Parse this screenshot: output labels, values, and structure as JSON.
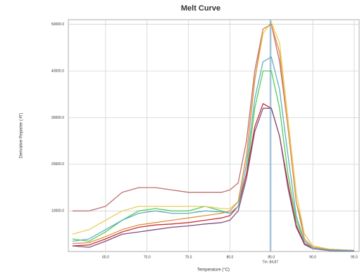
{
  "chart_data": {
    "type": "line",
    "title": "Melt Curve",
    "xlabel": "Temperature (°C)",
    "ylabel": "Derivative Reporter (-R')",
    "annotation": "Tm: 84.87",
    "tm": 84.87,
    "xlim": [
      60.5,
      95.6
    ],
    "ylim": [
      1300,
      51000
    ],
    "xticks": [
      {
        "value": 65,
        "label": "65.0"
      },
      {
        "value": 70,
        "label": "70.0"
      },
      {
        "value": 75,
        "label": "75.0"
      },
      {
        "value": 80,
        "label": "80.0"
      },
      {
        "value": 85,
        "label": "85.0"
      },
      {
        "value": 90,
        "label": "90.0"
      },
      {
        "value": 95,
        "label": "95.0"
      }
    ],
    "yticks": [
      {
        "value": 10000,
        "label": "10000.0"
      },
      {
        "value": 20000,
        "label": "20000.0"
      },
      {
        "value": 30000,
        "label": "30000.0"
      },
      {
        "value": 40000,
        "label": "40000.0"
      },
      {
        "value": 50000,
        "label": "50000.0"
      }
    ],
    "grid": true,
    "x": [
      61,
      63,
      65,
      67,
      69,
      71,
      73,
      75,
      77,
      79,
      80,
      81,
      82,
      83,
      84,
      85,
      86,
      87,
      88,
      89,
      90,
      92,
      95
    ],
    "series": [
      {
        "color": "#c07070",
        "values": [
          10000,
          10000,
          11000,
          14000,
          15000,
          15000,
          14500,
          14000,
          14000,
          14000,
          14500,
          16000,
          25000,
          40000,
          49000,
          50000,
          42000,
          28000,
          12000,
          5000,
          2500,
          1800,
          1500
        ]
      },
      {
        "color": "#55cc55",
        "values": [
          4000,
          3500,
          5500,
          8000,
          10000,
          10500,
          10000,
          10000,
          11000,
          10000,
          9500,
          11000,
          18000,
          32000,
          40000,
          40000,
          32000,
          18000,
          8000,
          3500,
          2000,
          1600,
          1500
        ]
      },
      {
        "color": "#e8d060",
        "values": [
          5000,
          6000,
          8000,
          10000,
          11000,
          11000,
          11000,
          11000,
          11000,
          10500,
          10500,
          12000,
          22000,
          38000,
          48000,
          50500,
          46000,
          30000,
          14000,
          5000,
          2500,
          1800,
          1500
        ]
      },
      {
        "color": "#e09040",
        "values": [
          3000,
          3200,
          4500,
          6000,
          7000,
          7500,
          8000,
          8500,
          9000,
          9500,
          10000,
          12000,
          22000,
          38000,
          49000,
          50000,
          44000,
          28000,
          12000,
          4000,
          2200,
          1700,
          1500
        ]
      },
      {
        "color": "#cc3030",
        "values": [
          2500,
          2700,
          4000,
          5500,
          6500,
          7000,
          7200,
          7500,
          8000,
          8500,
          9000,
          11000,
          18000,
          28000,
          33000,
          32000,
          26000,
          16000,
          7000,
          3000,
          2000,
          1600,
          1500
        ]
      },
      {
        "color": "#805080",
        "values": [
          2500,
          2200,
          3500,
          5000,
          5500,
          6000,
          6500,
          6800,
          7200,
          7500,
          8000,
          10000,
          17000,
          27000,
          32000,
          32000,
          26000,
          15000,
          6500,
          2800,
          1900,
          1500,
          1400
        ]
      },
      {
        "color": "#60b0c0",
        "values": [
          3500,
          4000,
          6000,
          8000,
          9500,
          10000,
          9500,
          9500,
          10000,
          9800,
          9500,
          11000,
          20000,
          34000,
          42000,
          43000,
          36000,
          22000,
          9000,
          3500,
          2000,
          1600,
          1500
        ]
      }
    ]
  }
}
